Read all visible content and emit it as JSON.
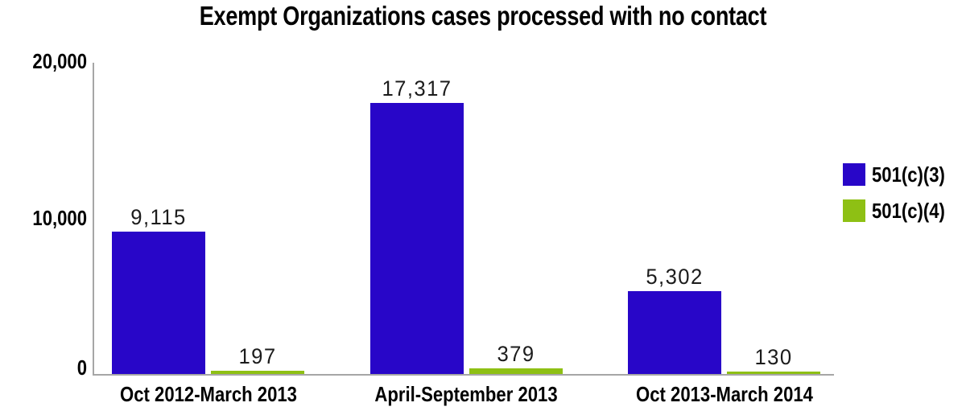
{
  "chart_data": {
    "type": "bar",
    "title": "Exempt Organizations cases processed with no contact",
    "categories": [
      "Oct 2012-March 2013",
      "April-September 2013",
      "Oct 2013-March 2014"
    ],
    "series": [
      {
        "name": "501(c)(3)",
        "color": "#2806C8",
        "values": [
          9115,
          17317,
          5302
        ],
        "value_labels": [
          "9,115",
          "17,317",
          "5,302"
        ]
      },
      {
        "name": "501(c)(4)",
        "color": "#8EC014",
        "values": [
          197,
          379,
          130
        ],
        "value_labels": [
          "197",
          "379",
          "130"
        ]
      }
    ],
    "xlabel": "",
    "ylabel": "",
    "ylim": [
      0,
      20000
    ],
    "yticks": [
      {
        "value": 20000,
        "label": "20,000"
      },
      {
        "value": 10000,
        "label": "10,000"
      },
      {
        "value": 0,
        "label": "0"
      }
    ],
    "grid": false,
    "legend_position": "right",
    "axis_color": "#A6A6A6",
    "background_color": "#FFFFFF"
  }
}
